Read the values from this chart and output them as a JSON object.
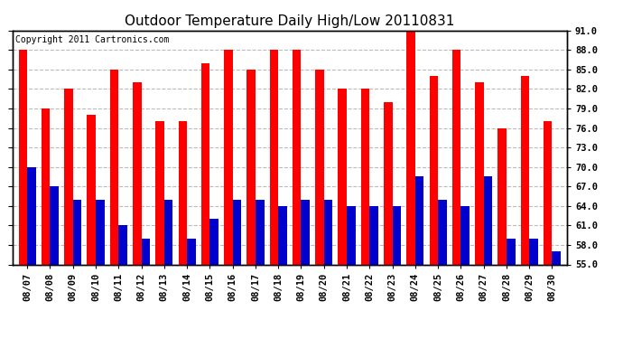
{
  "title": "Outdoor Temperature Daily High/Low 20110831",
  "copyright": "Copyright 2011 Cartronics.com",
  "dates": [
    "08/07",
    "08/08",
    "08/09",
    "08/10",
    "08/11",
    "08/12",
    "08/13",
    "08/14",
    "08/15",
    "08/16",
    "08/17",
    "08/18",
    "08/19",
    "08/20",
    "08/21",
    "08/22",
    "08/23",
    "08/24",
    "08/25",
    "08/26",
    "08/27",
    "08/28",
    "08/29",
    "08/30"
  ],
  "highs": [
    88.0,
    79.0,
    82.0,
    78.0,
    85.0,
    83.0,
    77.0,
    77.0,
    86.0,
    88.0,
    85.0,
    88.0,
    88.0,
    85.0,
    82.0,
    82.0,
    80.0,
    92.0,
    84.0,
    88.0,
    83.0,
    76.0,
    84.0,
    77.0
  ],
  "lows": [
    70.0,
    67.0,
    65.0,
    65.0,
    61.0,
    59.0,
    65.0,
    59.0,
    62.0,
    65.0,
    65.0,
    64.0,
    65.0,
    65.0,
    64.0,
    64.0,
    64.0,
    68.5,
    65.0,
    64.0,
    68.5,
    59.0,
    59.0,
    57.0
  ],
  "high_color": "#ff0000",
  "low_color": "#0000cc",
  "bg_color": "#ffffff",
  "grid_color": "#bbbbbb",
  "ylim_min": 55.0,
  "ylim_max": 91.0,
  "yticks": [
    55.0,
    58.0,
    61.0,
    64.0,
    67.0,
    70.0,
    73.0,
    76.0,
    79.0,
    82.0,
    85.0,
    88.0,
    91.0
  ],
  "title_fontsize": 11,
  "copyright_fontsize": 7,
  "tick_fontsize": 7.5,
  "bar_width": 0.38
}
